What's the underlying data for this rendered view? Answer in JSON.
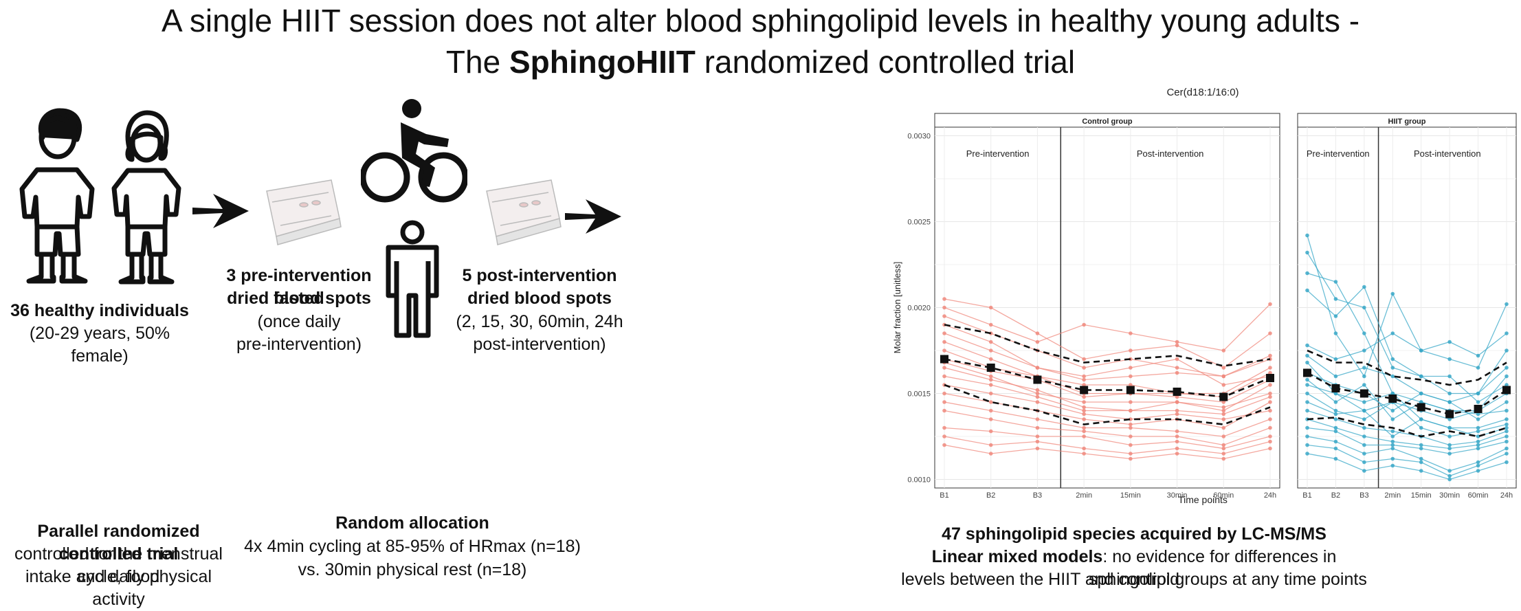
{
  "title": {
    "line1": "A single HIIT session does not alter blood sphingolipid levels in healthy young adults -",
    "line2_pre": "The ",
    "line2_bold": "SphingoHIIT",
    "line2_post": " randomized controlled trial"
  },
  "participants": {
    "heading": "36 healthy individuals",
    "detail": "(20-29 years, 50% female)"
  },
  "pre_spots": {
    "line1": "3 pre-intervention fasted",
    "line2": "dried blood spots",
    "line3": "(once daily",
    "line4": "pre-intervention)"
  },
  "post_spots": {
    "line1": "5 post-intervention",
    "line2": "dried blood spots",
    "line3": "(2, 15, 30, 60min, 24h",
    "line4": "post-intervention)"
  },
  "trial": {
    "heading": "Parallel randomized controlled trial",
    "line1": "controlled for the menstrual cycle, food",
    "line2": "intake and daily physical activity"
  },
  "allocation": {
    "heading": "Random allocation",
    "line1": "4x 4min cycling at 85-95% of HRmax (n=18)",
    "line2": "vs. 30min physical rest (n=18)"
  },
  "results": {
    "heading": "47 sphingolipid species acquired by LC-MS/MS",
    "line1_bold": "Linear mixed models",
    "line1_rest": ": no evidence for differences in sphingolipid",
    "line2": "levels between the HIIT and control groups at any time points"
  },
  "chart_data": {
    "type": "line",
    "title": "Cer(d18:1/16:0)",
    "xlabel": "Time points",
    "ylabel": "Molar fraction [unitless]",
    "x": [
      "B1",
      "B2",
      "B3",
      "2min",
      "15min",
      "30min",
      "60min",
      "24h"
    ],
    "ylim": [
      0.00095,
      0.00305
    ],
    "yticks": [
      "0.0010",
      "0.0015",
      "0.0020",
      "0.0025",
      "0.0030"
    ],
    "ytick_values": [
      0.001,
      0.0015,
      0.002,
      0.0025,
      0.003
    ],
    "grid": true,
    "phase_labels": [
      "Pre-intervention",
      "Post-intervention"
    ],
    "panels": [
      {
        "name": "Control group",
        "color": "#f08a7e",
        "mean": [
          0.0017,
          0.00165,
          0.00158,
          0.00152,
          0.00152,
          0.00151,
          0.00148,
          0.00159
        ],
        "upper": [
          0.0019,
          0.00185,
          0.00175,
          0.00168,
          0.0017,
          0.00172,
          0.00166,
          0.0017
        ],
        "lower": [
          0.00155,
          0.00145,
          0.0014,
          0.00132,
          0.00135,
          0.00135,
          0.00132,
          0.00142
        ],
        "series": [
          [
            0.00205,
            0.002,
            0.00185,
            0.0017,
            0.00175,
            0.00178,
            0.00165,
            0.00185
          ],
          [
            0.002,
            0.0019,
            0.0018,
            0.0019,
            0.00185,
            0.0018,
            0.00175,
            0.00202
          ],
          [
            0.00195,
            0.00185,
            0.00175,
            0.00165,
            0.0017,
            0.00165,
            0.0016,
            0.0017
          ],
          [
            0.0019,
            0.0018,
            0.00165,
            0.0016,
            0.00165,
            0.0017,
            0.00155,
            0.0016
          ],
          [
            0.00185,
            0.00175,
            0.00165,
            0.00158,
            0.0016,
            0.00162,
            0.0016,
            0.00172
          ],
          [
            0.0018,
            0.0017,
            0.0016,
            0.00155,
            0.00155,
            0.0015,
            0.0015,
            0.00165
          ],
          [
            0.00175,
            0.00165,
            0.0016,
            0.0015,
            0.0015,
            0.0015,
            0.00148,
            0.00162
          ],
          [
            0.0017,
            0.00163,
            0.00158,
            0.00148,
            0.0015,
            0.00148,
            0.00145,
            0.00158
          ],
          [
            0.00168,
            0.0016,
            0.0015,
            0.00145,
            0.00145,
            0.00145,
            0.00142,
            0.0015
          ],
          [
            0.00165,
            0.00158,
            0.00152,
            0.00142,
            0.0014,
            0.00145,
            0.0014,
            0.00155
          ],
          [
            0.0016,
            0.00155,
            0.00148,
            0.0014,
            0.0014,
            0.0014,
            0.00138,
            0.00148
          ],
          [
            0.00155,
            0.0015,
            0.00145,
            0.00138,
            0.00135,
            0.00138,
            0.00135,
            0.0014
          ],
          [
            0.0015,
            0.00145,
            0.0014,
            0.00135,
            0.00132,
            0.00135,
            0.0013,
            0.00145
          ],
          [
            0.00145,
            0.0014,
            0.00135,
            0.0013,
            0.0013,
            0.00128,
            0.00125,
            0.00135
          ],
          [
            0.0014,
            0.00135,
            0.0013,
            0.00128,
            0.00125,
            0.00125,
            0.0012,
            0.0013
          ],
          [
            0.0013,
            0.00128,
            0.00125,
            0.00125,
            0.0012,
            0.00122,
            0.00118,
            0.00125
          ],
          [
            0.00125,
            0.0012,
            0.00122,
            0.00118,
            0.00115,
            0.00118,
            0.00115,
            0.00122
          ],
          [
            0.0012,
            0.00115,
            0.00118,
            0.00115,
            0.00112,
            0.00115,
            0.00112,
            0.00118
          ]
        ]
      },
      {
        "name": "HIIT group",
        "color": "#3aa8c8",
        "mean": [
          0.00162,
          0.00153,
          0.0015,
          0.00147,
          0.00142,
          0.00138,
          0.00141,
          0.00152
        ],
        "upper": [
          0.00175,
          0.00168,
          0.00168,
          0.0016,
          0.00158,
          0.00155,
          0.00158,
          0.00168
        ],
        "lower": [
          0.00135,
          0.00136,
          0.00132,
          0.0013,
          0.00125,
          0.00128,
          0.00125,
          0.0013
        ],
        "series": [
          [
            0.00242,
            0.00185,
            0.0016,
            0.00208,
            0.00175,
            0.0018,
            0.00172,
            0.00185
          ],
          [
            0.00232,
            0.00205,
            0.002,
            0.00165,
            0.0016,
            0.0015,
            0.0015,
            0.00175
          ],
          [
            0.0022,
            0.00215,
            0.00185,
            0.0015,
            0.00145,
            0.0014,
            0.0014,
            0.0016
          ],
          [
            0.0021,
            0.00195,
            0.00212,
            0.0017,
            0.0016,
            0.0016,
            0.00145,
            0.00155
          ],
          [
            0.00178,
            0.0017,
            0.00175,
            0.00185,
            0.00175,
            0.0017,
            0.00165,
            0.00202
          ],
          [
            0.00172,
            0.0016,
            0.00165,
            0.0016,
            0.0015,
            0.00145,
            0.0015,
            0.00165
          ],
          [
            0.00168,
            0.0015,
            0.0014,
            0.00145,
            0.0014,
            0.00135,
            0.0014,
            0.0015
          ],
          [
            0.00162,
            0.00155,
            0.0015,
            0.0014,
            0.0015,
            0.00145,
            0.00135,
            0.00145
          ],
          [
            0.00158,
            0.00145,
            0.00155,
            0.00135,
            0.00145,
            0.0014,
            0.00138,
            0.0014
          ],
          [
            0.00155,
            0.0015,
            0.00145,
            0.0015,
            0.00135,
            0.0013,
            0.0013,
            0.00135
          ],
          [
            0.0015,
            0.0014,
            0.00135,
            0.00145,
            0.0013,
            0.00125,
            0.00128,
            0.00132
          ],
          [
            0.00145,
            0.00138,
            0.0014,
            0.00125,
            0.00135,
            0.0013,
            0.00125,
            0.0013
          ],
          [
            0.0014,
            0.00135,
            0.0013,
            0.00128,
            0.00125,
            0.0012,
            0.00122,
            0.00128
          ],
          [
            0.00135,
            0.0013,
            0.00125,
            0.00122,
            0.0012,
            0.00118,
            0.0012,
            0.00125
          ],
          [
            0.0013,
            0.00128,
            0.0012,
            0.0012,
            0.00118,
            0.00115,
            0.00118,
            0.00122
          ],
          [
            0.00125,
            0.00122,
            0.00115,
            0.00118,
            0.00112,
            0.00105,
            0.0011,
            0.00118
          ],
          [
            0.0012,
            0.00118,
            0.0011,
            0.00112,
            0.0011,
            0.00102,
            0.00108,
            0.00115
          ],
          [
            0.00115,
            0.00112,
            0.00105,
            0.00108,
            0.00105,
            0.001,
            0.00105,
            0.0011
          ]
        ]
      }
    ]
  }
}
